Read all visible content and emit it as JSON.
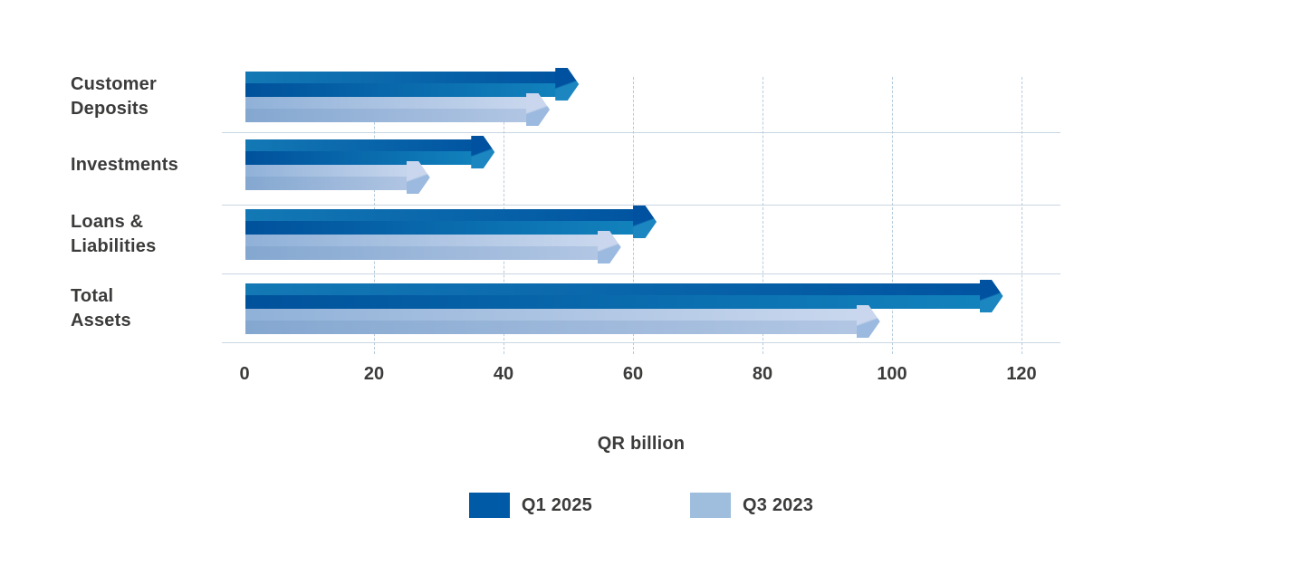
{
  "chart_data": {
    "type": "bar",
    "orientation": "horizontal",
    "title": "",
    "xlabel": "QR billion",
    "categories": [
      "Customer\nDeposits",
      "Investments",
      "Loans &\nLiabilities",
      "Total\nAssets"
    ],
    "series": [
      {
        "name": "Q1 2025",
        "color": "#005AA6",
        "values": [
          51.5,
          38.5,
          63.5,
          117
        ]
      },
      {
        "name": "Q3 2023",
        "color": "#9FBEDD",
        "values": [
          47,
          28.5,
          58,
          98
        ]
      }
    ],
    "xlim": [
      0,
      120
    ],
    "xticks": [
      0,
      20,
      40,
      60,
      80,
      100,
      120
    ],
    "grid": "vertical-dashed",
    "legend_position": "bottom"
  },
  "colors": {
    "q1_2025_dark_blue": "#005AA6",
    "q3_2023_light_blue": "#9FBEDD",
    "text": "#3B3B3A",
    "separator_line": "#C9D6E3",
    "gridline": "#B5CCDD",
    "background": "#FFFFFF"
  }
}
